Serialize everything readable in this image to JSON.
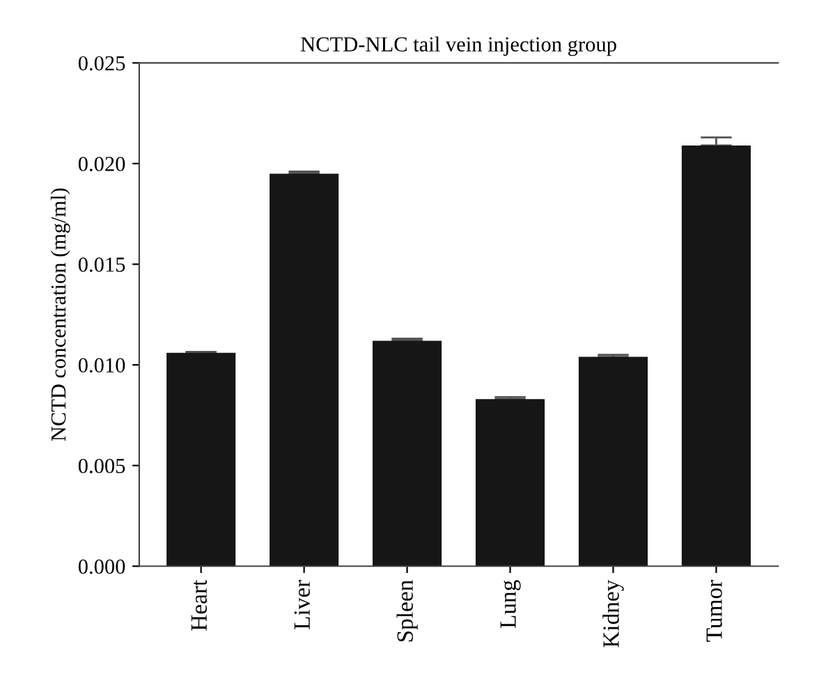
{
  "chart_data": {
    "type": "bar",
    "title": "NCTD-NLC tail vein injection group",
    "ylabel": "NCTD concentration (mg/ml)",
    "categories": [
      "Heart",
      "Liver",
      "Spleen",
      "Lung",
      "Kidney",
      "Tumor"
    ],
    "values": [
      0.0106,
      0.0195,
      0.0112,
      0.0083,
      0.0104,
      0.0209
    ],
    "errors": [
      5e-05,
      0.0001,
      0.0001,
      0.0001,
      0.0001,
      0.0004
    ],
    "color": "#161616",
    "ylim": [
      0,
      0.025
    ],
    "yticks": [
      {
        "value": 0,
        "label": "0.000"
      },
      {
        "value": 0.005,
        "label": "0.005"
      },
      {
        "value": 0.01,
        "label": "0.010"
      },
      {
        "value": 0.015,
        "label": "0.015"
      },
      {
        "value": 0.02,
        "label": "0.020"
      },
      {
        "value": 0.025,
        "label": "0.025"
      }
    ],
    "grid": false
  }
}
